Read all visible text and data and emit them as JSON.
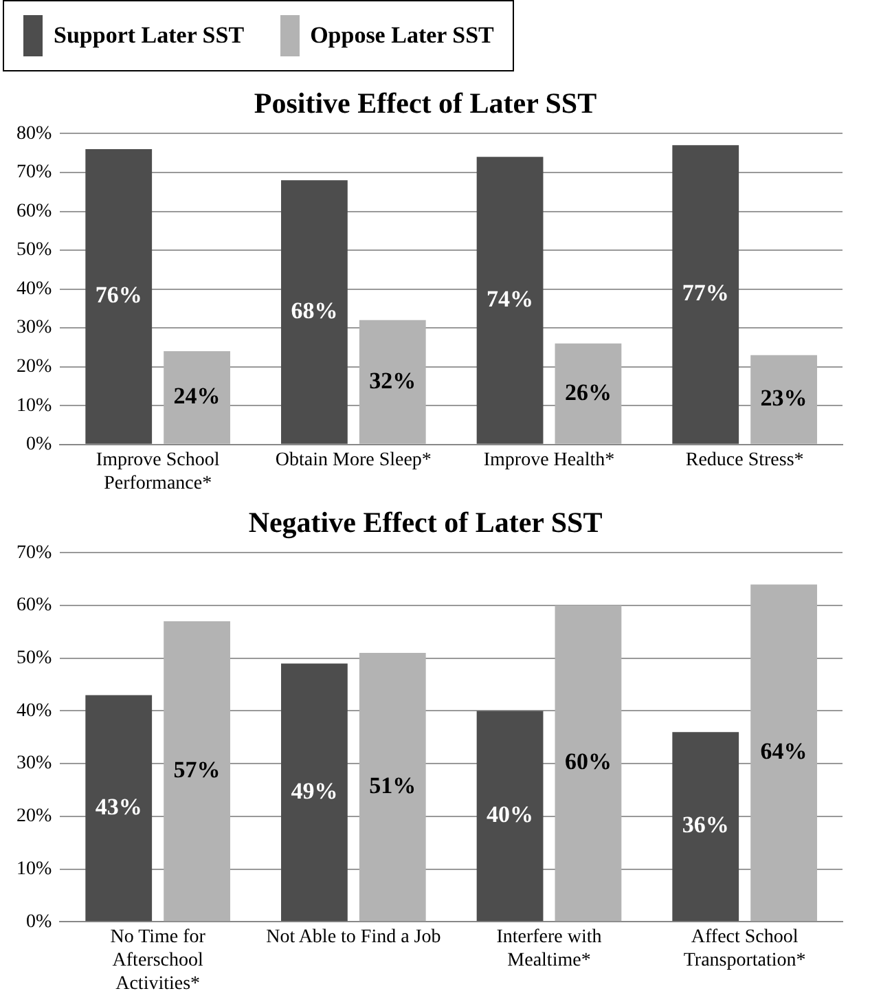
{
  "chart_data": [
    {
      "type": "bar",
      "title": "Positive Effect of Later SST",
      "categories": [
        "Improve School Performance*",
        "Obtain More Sleep*",
        "Improve Health*",
        "Reduce Stress*"
      ],
      "series": [
        {
          "name": "Support Later SST",
          "color": "#4d4d4d",
          "values": [
            76,
            68,
            74,
            77
          ],
          "value_labels": [
            "76%",
            "68%",
            "74%",
            "77%"
          ]
        },
        {
          "name": "Oppose Later SST",
          "color": "#b3b3b3",
          "values": [
            24,
            32,
            26,
            23
          ],
          "value_labels": [
            "24%",
            "32%",
            "26%",
            "23%"
          ]
        }
      ],
      "ylim": [
        0,
        80
      ],
      "yticks": [
        {
          "value": 0,
          "label": "0%"
        },
        {
          "value": 10,
          "label": "10%"
        },
        {
          "value": 20,
          "label": "20%"
        },
        {
          "value": 30,
          "label": "30%"
        },
        {
          "value": 40,
          "label": "40%"
        },
        {
          "value": 50,
          "label": "50%"
        },
        {
          "value": 60,
          "label": "60%"
        },
        {
          "value": 70,
          "label": "70%"
        },
        {
          "value": 80,
          "label": "80%"
        }
      ],
      "grid": "y",
      "legend": "top left"
    },
    {
      "type": "bar",
      "title": "Negative Effect of Later SST",
      "categories": [
        "No Time for Afterschool Activities*",
        "Not Able to Find a Job",
        "Interfere with Mealtime*",
        "Affect School Transportation*"
      ],
      "series": [
        {
          "color": "#4d4d4d",
          "values": [
            43,
            49,
            40,
            36
          ],
          "value_labels": [
            "43%",
            "49%",
            "40%",
            "36%"
          ]
        },
        {
          "color": "#b3b3b3",
          "values": [
            57,
            51,
            60,
            64
          ],
          "value_labels": [
            "57%",
            "51%",
            "60%",
            "64%"
          ]
        }
      ],
      "ylim": [
        0,
        70
      ],
      "yticks": [
        {
          "value": 0,
          "label": "0%"
        },
        {
          "value": 10,
          "label": "10%"
        },
        {
          "value": 20,
          "label": "20%"
        },
        {
          "value": 30,
          "label": "30%"
        },
        {
          "value": 40,
          "label": "40%"
        },
        {
          "value": 50,
          "label": "50%"
        },
        {
          "value": 60,
          "label": "60%"
        },
        {
          "value": 70,
          "label": "70%"
        }
      ],
      "grid": "y"
    }
  ]
}
